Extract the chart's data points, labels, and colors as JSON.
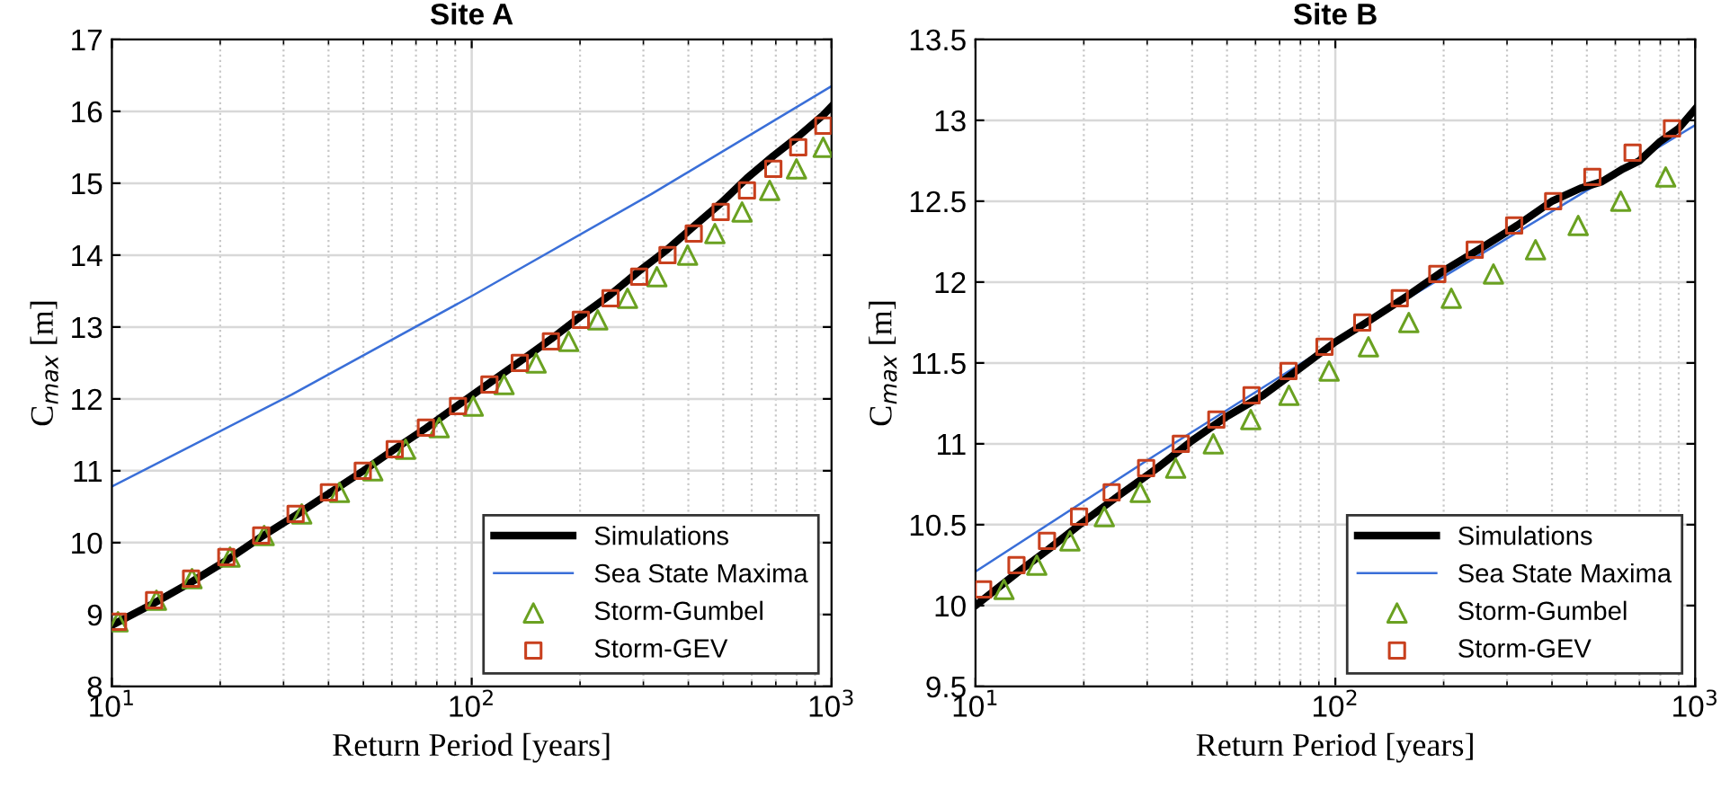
{
  "chart_data": [
    {
      "type": "line",
      "title": "Site A",
      "xlabel": "Return Period [years]",
      "ylabel": "C$_{max}$ [m]",
      "log": "x",
      "grid": true,
      "legend": "bottom right",
      "xlim": [
        10,
        1000
      ],
      "xticks": [
        {
          "value": 10,
          "label": "10$^{1}$"
        },
        {
          "value": 100,
          "label": "10$^{2}$"
        },
        {
          "value": 1000,
          "label": "10$^{3}$"
        }
      ],
      "ylim": [
        8,
        17
      ],
      "yticks": [
        8,
        9,
        10,
        11,
        12,
        13,
        14,
        15,
        16,
        17
      ],
      "series": [
        {
          "name": "Simulations",
          "color": "#000000",
          "x": [
            10,
            13,
            16.6,
            20.8,
            26,
            32.4,
            40,
            50,
            61,
            75,
            92,
            112,
            136,
            166,
            201,
            243,
            292,
            350,
            414,
            492,
            582,
            689,
            808,
            949,
            1000
          ],
          "values": [
            8.85,
            9.15,
            9.45,
            9.75,
            10.08,
            10.38,
            10.68,
            11.0,
            11.3,
            11.6,
            11.92,
            12.22,
            12.52,
            12.83,
            13.15,
            13.45,
            13.78,
            14.08,
            14.4,
            14.72,
            15.07,
            15.38,
            15.65,
            15.95,
            16.07
          ]
        },
        {
          "name": "Sea State Maxima",
          "color": "#3a6fd8",
          "x": [
            10,
            31.6,
            100,
            316,
            1000
          ],
          "values": [
            10.78,
            12.06,
            13.43,
            14.85,
            16.35
          ]
        },
        {
          "name": "Storm-Gumbel",
          "type": "scatter",
          "marker": "triangle",
          "color": "#6aa121",
          "x": [
            10.4,
            13.3,
            16.7,
            21.3,
            26.5,
            33.7,
            42.9,
            53.1,
            65.5,
            81.2,
            101,
            123,
            151,
            186,
            224,
            271,
            327,
            398,
            474,
            564,
            673,
            799,
            948
          ],
          "values": [
            8.9,
            9.2,
            9.5,
            9.8,
            10.1,
            10.4,
            10.7,
            11.0,
            11.3,
            11.6,
            11.9,
            12.2,
            12.5,
            12.8,
            13.1,
            13.4,
            13.7,
            14.0,
            14.3,
            14.6,
            14.9,
            15.2,
            15.5
          ]
        },
        {
          "name": "Storm-GEV",
          "type": "scatter",
          "marker": "square",
          "color": "#c8401e",
          "x": [
            10.4,
            13.1,
            16.6,
            20.8,
            26,
            32.4,
            40.1,
            49.8,
            61.1,
            74.6,
            91.6,
            112,
            136,
            166,
            201,
            243,
            292,
            350,
            414,
            492,
            582,
            689,
            808,
            949
          ],
          "values": [
            8.9,
            9.2,
            9.5,
            9.8,
            10.1,
            10.4,
            10.7,
            11.0,
            11.3,
            11.6,
            11.9,
            12.2,
            12.5,
            12.8,
            13.1,
            13.4,
            13.7,
            14.0,
            14.3,
            14.6,
            14.9,
            15.2,
            15.5,
            15.8
          ]
        }
      ]
    },
    {
      "type": "line",
      "title": "Site B",
      "xlabel": "Return Period [years]",
      "ylabel": "C$_{max}$ [m]",
      "log": "x",
      "grid": true,
      "legend": "bottom right",
      "xlim": [
        10,
        1000
      ],
      "xticks": [
        {
          "value": 10,
          "label": "10$^{1}$"
        },
        {
          "value": 100,
          "label": "10$^{2}$"
        },
        {
          "value": 1000,
          "label": "10$^{3}$"
        }
      ],
      "ylim": [
        9.5,
        13.5
      ],
      "yticks": [
        9.5,
        10,
        10.5,
        11,
        11.5,
        12,
        12.5,
        13,
        13.5
      ],
      "series": [
        {
          "name": "Simulations",
          "color": "#000000",
          "x": [
            10,
            13,
            16,
            20,
            25,
            32,
            40,
            50,
            63,
            80,
            100,
            126,
            160,
            200,
            250,
            320,
            400,
            480,
            550,
            630,
            700,
            800,
            900,
            1000
          ],
          "values": [
            10.0,
            10.2,
            10.35,
            10.52,
            10.68,
            10.85,
            11.02,
            11.17,
            11.3,
            11.47,
            11.63,
            11.77,
            11.92,
            12.07,
            12.2,
            12.35,
            12.5,
            12.58,
            12.62,
            12.7,
            12.75,
            12.87,
            12.95,
            13.07
          ]
        },
        {
          "name": "Sea State Maxima",
          "color": "#3a6fd8",
          "x": [
            10,
            31.6,
            100,
            316,
            1000
          ],
          "values": [
            10.21,
            10.93,
            11.63,
            12.3,
            12.97
          ]
        },
        {
          "name": "Storm-Gumbel",
          "type": "scatter",
          "marker": "triangle",
          "color": "#6aa121",
          "x": [
            12.0,
            14.8,
            18.3,
            22.8,
            28.7,
            36.0,
            45.8,
            58.2,
            74.3,
            96.1,
            123.6,
            160,
            210,
            275,
            360,
            473,
            621,
            828
          ],
          "values": [
            10.1,
            10.25,
            10.4,
            10.55,
            10.7,
            10.85,
            11.0,
            11.15,
            11.3,
            11.45,
            11.6,
            11.75,
            11.9,
            12.05,
            12.2,
            12.35,
            12.5,
            12.65
          ]
        },
        {
          "name": "Storm-GEV",
          "type": "scatter",
          "marker": "square",
          "color": "#c8401e",
          "x": [
            10.5,
            13.0,
            15.8,
            19.4,
            23.9,
            29.8,
            37.2,
            46.7,
            58.5,
            74.1,
            93.3,
            118.8,
            151,
            192,
            244,
            314,
            403,
            518,
            670,
            862
          ],
          "values": [
            10.1,
            10.25,
            10.4,
            10.55,
            10.7,
            10.85,
            11.0,
            11.15,
            11.3,
            11.45,
            11.6,
            11.75,
            11.9,
            12.05,
            12.2,
            12.35,
            12.5,
            12.65,
            12.8,
            12.95
          ]
        }
      ]
    }
  ]
}
